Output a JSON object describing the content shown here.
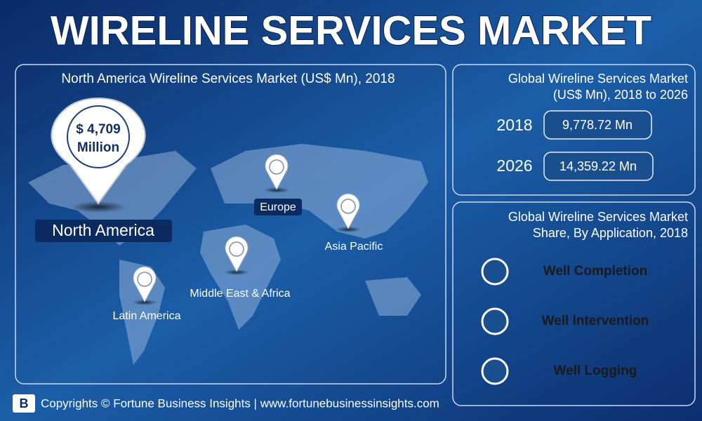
{
  "title": "WIRELINE SERVICES MARKET",
  "map_panel": {
    "title": "North America Wireline Services Market (US$ Mn), 2018",
    "callout": {
      "amount": "$ 4,709",
      "unit": "Million"
    },
    "regions": [
      "North America",
      "Europe",
      "Asia Pacific",
      "Middle East & Africa",
      "Latin America"
    ]
  },
  "global_panel": {
    "title_lines": [
      "Global Wireline Services Market",
      "(US$ Mn), 2018 to 2026"
    ],
    "rows": [
      {
        "year": "2018",
        "value": "9,778.72 Mn"
      },
      {
        "year": "2026",
        "value": "14,359.22 Mn"
      }
    ]
  },
  "share_panel": {
    "title_lines": [
      "Global Wireline Services Market",
      "Share, By Application, 2018"
    ],
    "items": [
      "Well Completion",
      "Well Intervention",
      "Well Logging"
    ]
  },
  "footer": "Copyrights © Fortune Business Insights | www.fortunebusinessinsights.com"
}
